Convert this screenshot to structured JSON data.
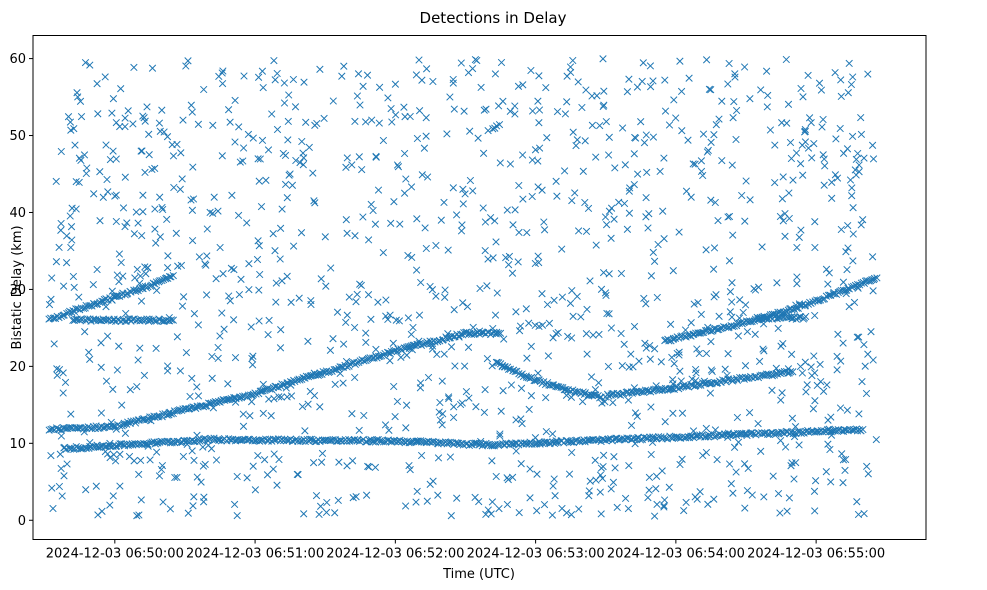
{
  "chart_data": {
    "type": "scatter",
    "title": "Detections in Delay",
    "xlabel": "Time (UTC)",
    "ylabel": "Bistatic Delay (km)",
    "x_unit": "seconds after 2024-12-03 06:50:00",
    "xlim": [
      -35,
      347
    ],
    "ylim": [
      -2.5,
      63
    ],
    "xticks": [
      {
        "value": 0,
        "label": "2024-12-03 06:50:00"
      },
      {
        "value": 60,
        "label": "2024-12-03 06:51:00"
      },
      {
        "value": 120,
        "label": "2024-12-03 06:52:00"
      },
      {
        "value": 180,
        "label": "2024-12-03 06:53:00"
      },
      {
        "value": 240,
        "label": "2024-12-03 06:54:00"
      },
      {
        "value": 300,
        "label": "2024-12-03 06:55:00"
      }
    ],
    "yticks": [
      0,
      10,
      20,
      30,
      40,
      50,
      60
    ],
    "marker": "x",
    "color": "#1f77b4",
    "grid": false,
    "time_range_seconds": [
      -28,
      326
    ],
    "noise_detection_count": 1300,
    "noise_delay_range_km": [
      0.5,
      60
    ],
    "tracks": [
      {
        "name": "track-a-rising-long",
        "points": [
          [
            -28,
            11.8
          ],
          [
            0,
            12.2
          ],
          [
            60,
            16.5
          ],
          [
            120,
            22.0
          ],
          [
            150,
            24.3
          ],
          [
            165,
            24.3
          ]
        ]
      },
      {
        "name": "track-a-descent",
        "points": [
          [
            163,
            20.5
          ],
          [
            175,
            18.8
          ],
          [
            190,
            17.2
          ],
          [
            208,
            16.0
          ]
        ]
      },
      {
        "name": "track-a-late",
        "points": [
          [
            210,
            16.2
          ],
          [
            240,
            17.2
          ],
          [
            270,
            18.5
          ],
          [
            290,
            19.3
          ]
        ]
      },
      {
        "name": "track-b-early",
        "points": [
          [
            -28,
            26.0
          ],
          [
            -15,
            27.5
          ],
          [
            0,
            29.0
          ],
          [
            15,
            30.5
          ],
          [
            25,
            31.8
          ]
        ]
      },
      {
        "name": "track-b-flat",
        "points": [
          [
            -18,
            26.0
          ],
          [
            25,
            26.0
          ]
        ]
      },
      {
        "name": "track-b-late",
        "points": [
          [
            235,
            23.3
          ],
          [
            260,
            25.0
          ],
          [
            280,
            26.5
          ],
          [
            300,
            28.5
          ],
          [
            326,
            31.5
          ]
        ]
      },
      {
        "name": "track-b-late-flat",
        "points": [
          [
            275,
            26.3
          ],
          [
            295,
            26.3
          ]
        ]
      },
      {
        "name": "track-c-floor",
        "points": [
          [
            -22,
            9.3
          ],
          [
            40,
            10.5
          ],
          [
            120,
            10.3
          ],
          [
            160,
            9.8
          ],
          [
            240,
            10.8
          ],
          [
            320,
            11.8
          ]
        ]
      }
    ]
  }
}
